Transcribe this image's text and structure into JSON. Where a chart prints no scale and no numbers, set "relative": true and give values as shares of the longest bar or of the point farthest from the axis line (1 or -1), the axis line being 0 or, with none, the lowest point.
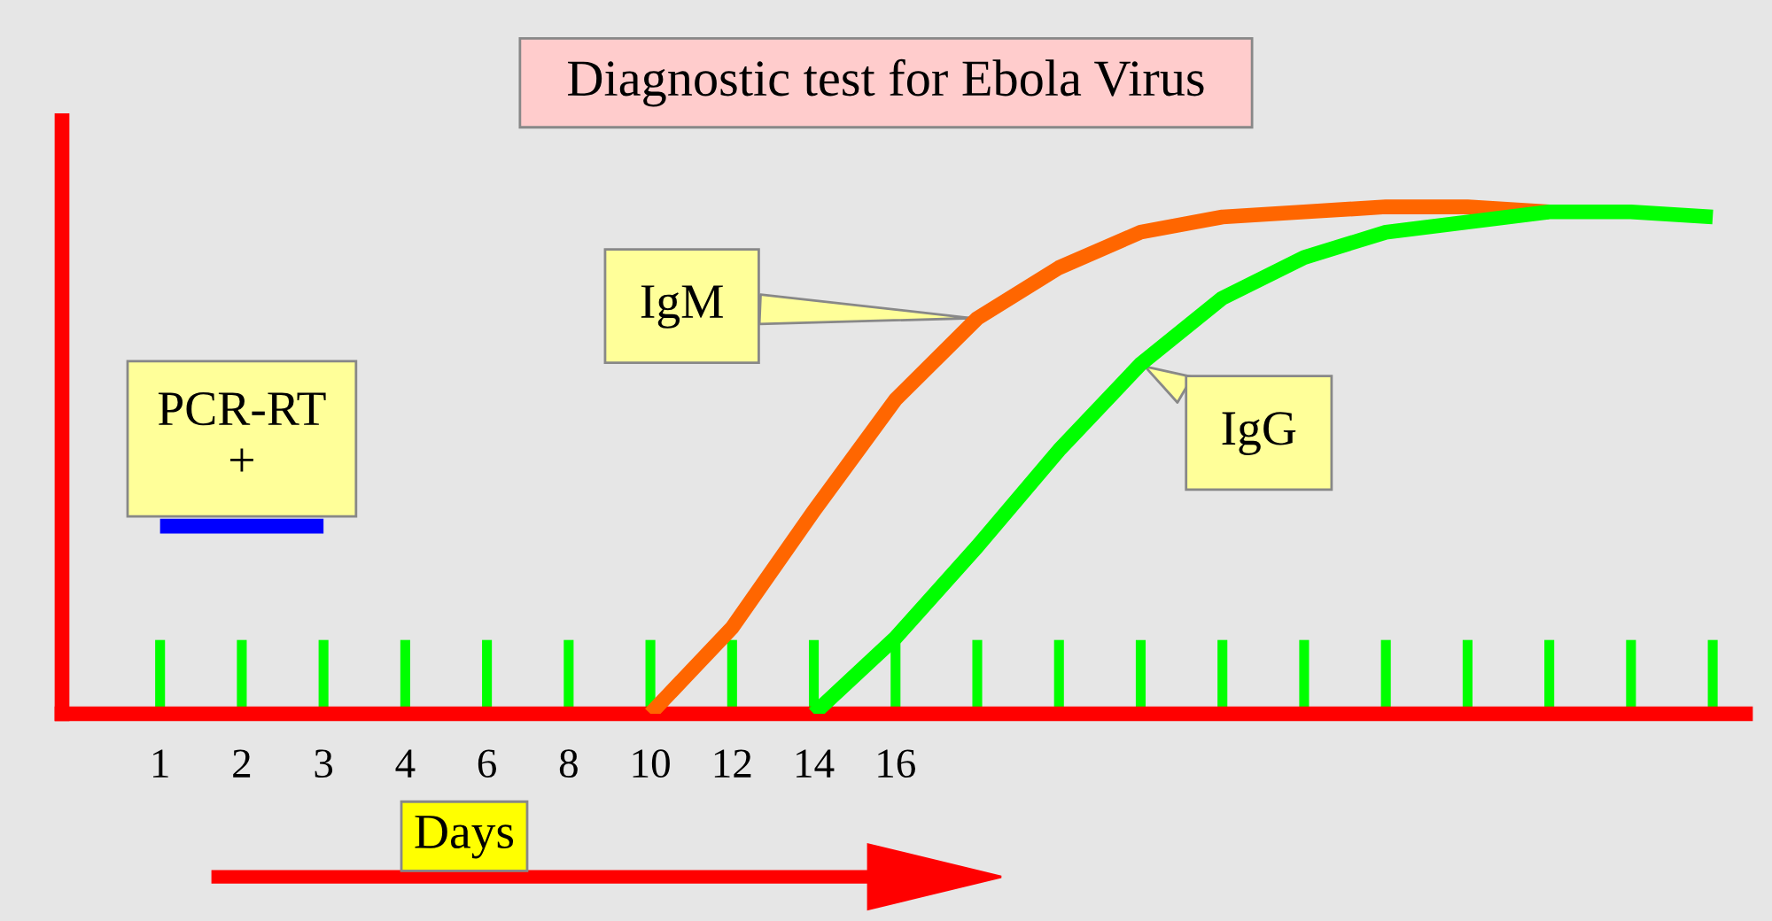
{
  "chart_data": {
    "type": "line",
    "title": "Diagnostic test for Ebola Virus",
    "xlabel": "Days",
    "relative": true,
    "legend": false,
    "grid": false,
    "marker": "none",
    "line_style": "solid",
    "categories": [
      "1",
      "2",
      "3",
      "4",
      "6",
      "8",
      "10",
      "12",
      "14",
      "16",
      null,
      null,
      null,
      null,
      null,
      null,
      null,
      null,
      null,
      null
    ],
    "series": [
      {
        "name": "PCR-RT\n+",
        "color": "#0000ff",
        "values": [
          0.37,
          0.37,
          0.37,
          null,
          null,
          null,
          null,
          null,
          null,
          null,
          null,
          null,
          null,
          null,
          null,
          null,
          null,
          null,
          null,
          null
        ]
      },
      {
        "name": "IgM",
        "color": "#ff6600",
        "values": [
          null,
          null,
          null,
          null,
          null,
          null,
          0,
          0.17,
          0.4,
          0.62,
          0.78,
          0.88,
          0.95,
          0.98,
          0.99,
          1,
          1,
          0.99,
          null,
          null
        ]
      },
      {
        "name": "IgG",
        "color": "#00ff00",
        "values": [
          null,
          null,
          null,
          null,
          null,
          null,
          null,
          null,
          0,
          0.15,
          0.33,
          0.52,
          0.69,
          0.82,
          0.9,
          0.95,
          0.97,
          0.99,
          0.99,
          0.98
        ]
      }
    ]
  }
}
